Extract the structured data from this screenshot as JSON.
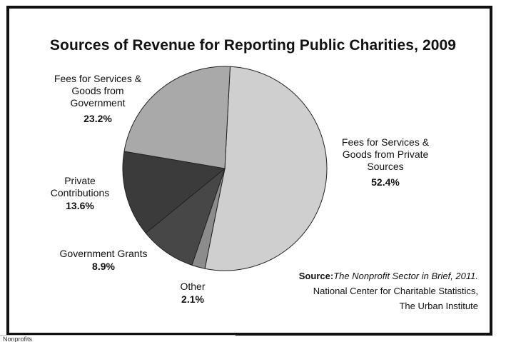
{
  "chart_data": {
    "type": "pie",
    "title": "Sources of Revenue for Reporting Public Charities, 2009",
    "slices": [
      {
        "label_lines": [
          "Fees for Services &",
          "Goods from Private",
          "Sources"
        ],
        "pct_text": "52.4%",
        "value": 52.4,
        "color": "#cfcfcf"
      },
      {
        "label_lines": [
          "Other"
        ],
        "pct_text": "2.1%",
        "value": 2.1,
        "color": "#8c8c8c"
      },
      {
        "label_lines": [
          "Government Grants"
        ],
        "pct_text": "8.9%",
        "value": 8.9,
        "color": "#474747"
      },
      {
        "label_lines": [
          "Private",
          "Contributions"
        ],
        "pct_text": "13.6%",
        "value": 13.6,
        "color": "#3b3b3b"
      },
      {
        "label_lines": [
          "Fees for Services &",
          "Goods from",
          "Government"
        ],
        "pct_text": "23.2%",
        "value": 23.2,
        "color": "#a9a9a9"
      }
    ],
    "start_angle_deg": 3,
    "direction": "clockwise"
  },
  "source": {
    "label": "Source",
    "publication": "The Nonprofit Sector in Brief, 2011.",
    "line2": "National Center for Charitable Statistics,",
    "line3": "The Urban Institute"
  },
  "footer_tab": "Nonprofits"
}
